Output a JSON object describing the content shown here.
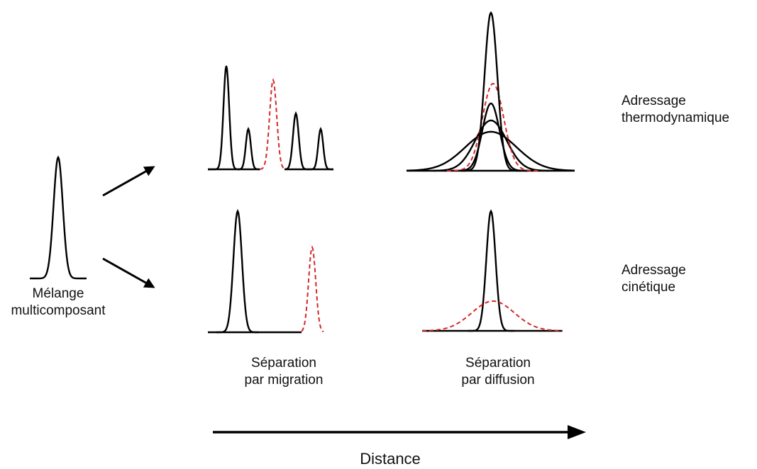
{
  "labels": {
    "mixture_line1": "Mélange",
    "mixture_line2": "multicomposant",
    "migration_line1": "Séparation",
    "migration_line2": "par migration",
    "diffusion_line1": "Séparation",
    "diffusion_line2": "par diffusion",
    "thermo_line1": "Adressage",
    "thermo_line2": "thermodynamique",
    "kinetic_line1": "Adressage",
    "kinetic_line2": "cinétique",
    "distance": "Distance"
  },
  "colors": {
    "solid": "#000000",
    "dashed": "#d62728"
  }
}
